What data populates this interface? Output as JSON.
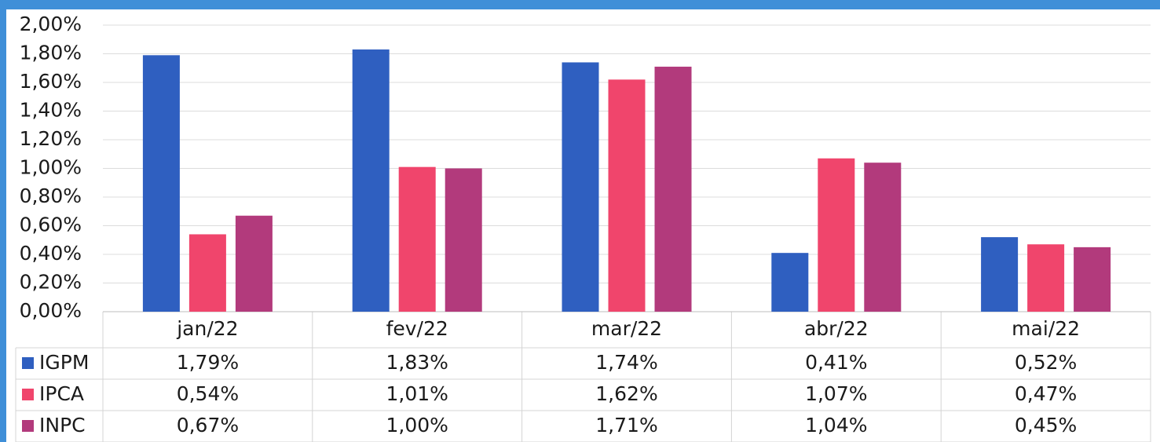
{
  "chart_data": {
    "type": "bar",
    "categories": [
      "jan/22",
      "fev/22",
      "mar/22",
      "abr/22",
      "mai/22"
    ],
    "series": [
      {
        "name": "IGPM",
        "color": "#2f5fc0",
        "values": [
          1.79,
          1.83,
          1.74,
          0.41,
          0.52
        ],
        "value_labels": [
          "1,79%",
          "1,83%",
          "1,74%",
          "0,41%",
          "0,52%"
        ]
      },
      {
        "name": "IPCA",
        "color": "#f0456c",
        "values": [
          0.54,
          1.01,
          1.62,
          1.07,
          0.47
        ],
        "value_labels": [
          "0,54%",
          "1,01%",
          "1,62%",
          "1,07%",
          "0,47%"
        ]
      },
      {
        "name": "INPC",
        "color": "#b23a7c",
        "values": [
          0.67,
          1.0,
          1.71,
          1.04,
          0.45
        ],
        "value_labels": [
          "0,67%",
          "1,00%",
          "1,71%",
          "1,04%",
          "0,45%"
        ]
      }
    ],
    "ylim": [
      0,
      2
    ],
    "yticks": [
      {
        "value": 0,
        "label": "0,00%"
      },
      {
        "value": 0.2,
        "label": "0,20%"
      },
      {
        "value": 0.4,
        "label": "0,40%"
      },
      {
        "value": 0.6,
        "label": "0,60%"
      },
      {
        "value": 0.8,
        "label": "0,80%"
      },
      {
        "value": 1.0,
        "label": "1,00%"
      },
      {
        "value": 1.2,
        "label": "1,20%"
      },
      {
        "value": 1.4,
        "label": "1,40%"
      },
      {
        "value": 1.6,
        "label": "1,60%"
      },
      {
        "value": 1.8,
        "label": "1,80%"
      },
      {
        "value": 2.0,
        "label": "2,00%"
      }
    ],
    "grid": true
  }
}
